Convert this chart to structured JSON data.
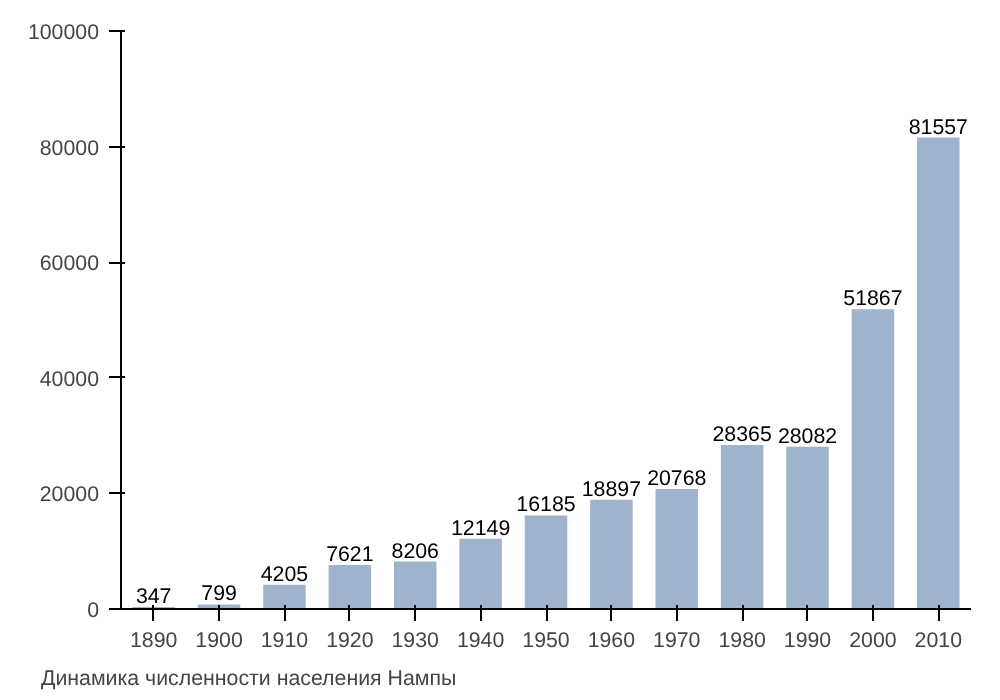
{
  "chart_data": {
    "type": "bar",
    "categories": [
      "1890",
      "1900",
      "1910",
      "1920",
      "1930",
      "1940",
      "1950",
      "1960",
      "1970",
      "1980",
      "1990",
      "2000",
      "2010"
    ],
    "values": [
      347,
      799,
      4205,
      7621,
      8206,
      12149,
      16185,
      18897,
      20768,
      28365,
      28082,
      51867,
      81557
    ],
    "color": "#9fb4cc",
    "ylim": [
      0,
      100000
    ],
    "yticks": [
      0,
      20000,
      40000,
      60000,
      80000,
      100000
    ],
    "grid": false,
    "data_labels": true,
    "annotations": [
      "Динамика численности населения Нампы"
    ]
  }
}
